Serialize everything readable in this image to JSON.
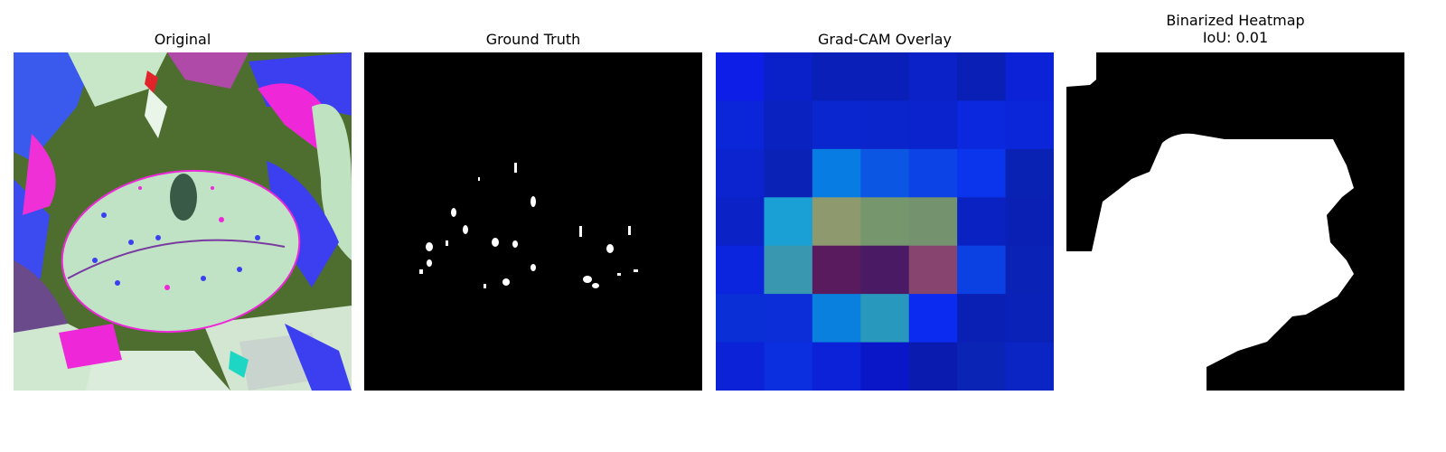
{
  "panels": [
    {
      "title": "Original"
    },
    {
      "title": "Ground Truth"
    },
    {
      "title": "Grad-CAM Overlay"
    },
    {
      "title": "Binarized Heatmap",
      "subtitle": "IoU: 0.01"
    }
  ],
  "gradcam_grid": [
    [
      "#0d1fe6",
      "#0a20c8",
      "#0a1fb8",
      "#0a1fb8",
      "#0a22c8",
      "#0a1fb5",
      "#0b22d6"
    ],
    [
      "#0b25d8",
      "#0a22c0",
      "#0a27cf",
      "#0a25cc",
      "#0a23cc",
      "#0b28de",
      "#0b26d8"
    ],
    [
      "#0b24d0",
      "#0a22b6",
      "#077de4",
      "#0b56e2",
      "#0b43e6",
      "#0b35ec",
      "#0a22b4"
    ],
    [
      "#0b22c6",
      "#1aa0d4",
      "#8e9a6e",
      "#76966e",
      "#74926e",
      "#0a22c2",
      "#0a1fb4"
    ],
    [
      "#0b25de",
      "#3998b0",
      "#5a1a5e",
      "#4a1a64",
      "#86446f",
      "#0b40e3",
      "#0a22b6"
    ],
    [
      "#0b2fd6",
      "#0b2ed8",
      "#0a80de",
      "#2898bc",
      "#0b2cf0",
      "#0a1fb4",
      "#0a22b8"
    ],
    [
      "#0b22d6",
      "#0b2ede",
      "#0b22d8",
      "#0a17c8",
      "#0a1cb0",
      "#0a24b6",
      "#0a25c4"
    ]
  ]
}
